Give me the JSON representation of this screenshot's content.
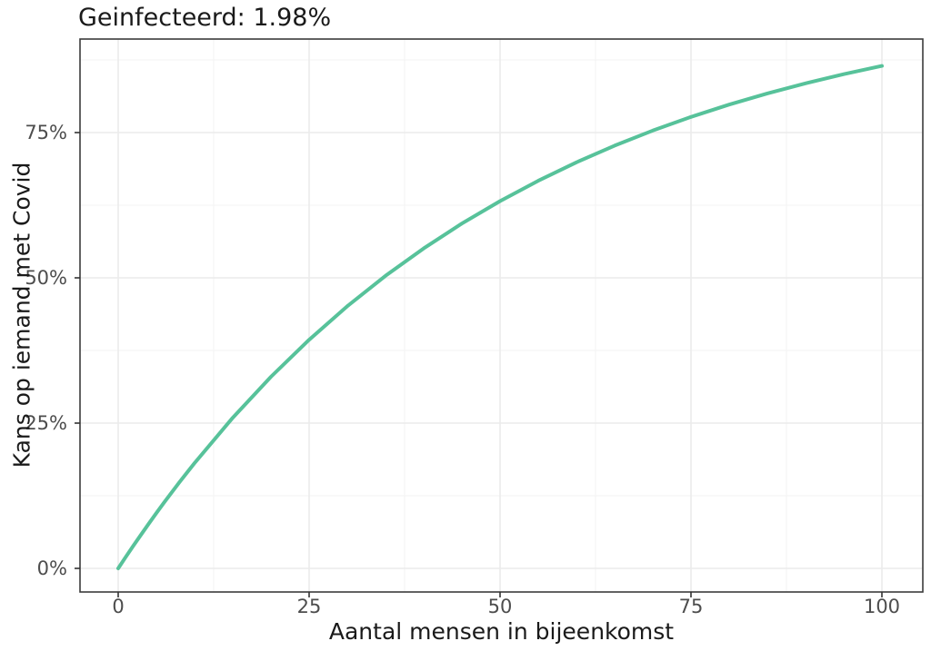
{
  "chart_data": {
    "type": "line",
    "title": "Geinfecteerd: 1.98%",
    "xlabel": "Aantal mensen in bijeenkomst",
    "ylabel": "Kans op iemand met Covid",
    "infected_percent_shown_in_title": "1.98%",
    "x": [
      0,
      1,
      2,
      3,
      4,
      5,
      6,
      7,
      8,
      9,
      10,
      15,
      20,
      25,
      30,
      35,
      40,
      45,
      50,
      55,
      60,
      65,
      70,
      75,
      80,
      85,
      90,
      95,
      100
    ],
    "y_percent": [
      0,
      1.98,
      3.92,
      5.82,
      7.69,
      9.52,
      11.31,
      13.06,
      14.79,
      16.47,
      18.13,
      25.92,
      32.97,
      39.35,
      45.12,
      50.34,
      55.07,
      59.34,
      63.21,
      66.71,
      69.88,
      72.75,
      75.34,
      77.69,
      79.81,
      81.73,
      83.47,
      85.04,
      86.47
    ],
    "x_tick_values": [
      0,
      25,
      50,
      75,
      100
    ],
    "x_tick_labels": [
      "0",
      "25",
      "50",
      "75",
      "100"
    ],
    "y_tick_values": [
      0,
      25,
      50,
      75
    ],
    "y_tick_labels": [
      "0%",
      "25%",
      "50%",
      "75%"
    ],
    "x_minor_gridlines": [
      12.5,
      37.5,
      62.5,
      87.5
    ],
    "y_minor_gridlines": [
      12.5,
      37.5,
      62.5,
      87.5
    ],
    "xlim": [
      -5,
      105.4
    ],
    "ylim": [
      -4.1,
      91.1
    ],
    "grid": true,
    "legend_position": "none",
    "colors": {
      "line": "#57c29a",
      "grid_major": "#ebebeb",
      "grid_minor": "#f5f5f5",
      "panel_border": "#3b3b3b",
      "tick_mark": "#333333",
      "tick_text": "#4d4d4d",
      "title_text": "#1a1a1a",
      "panel_background": "#ffffff"
    }
  }
}
